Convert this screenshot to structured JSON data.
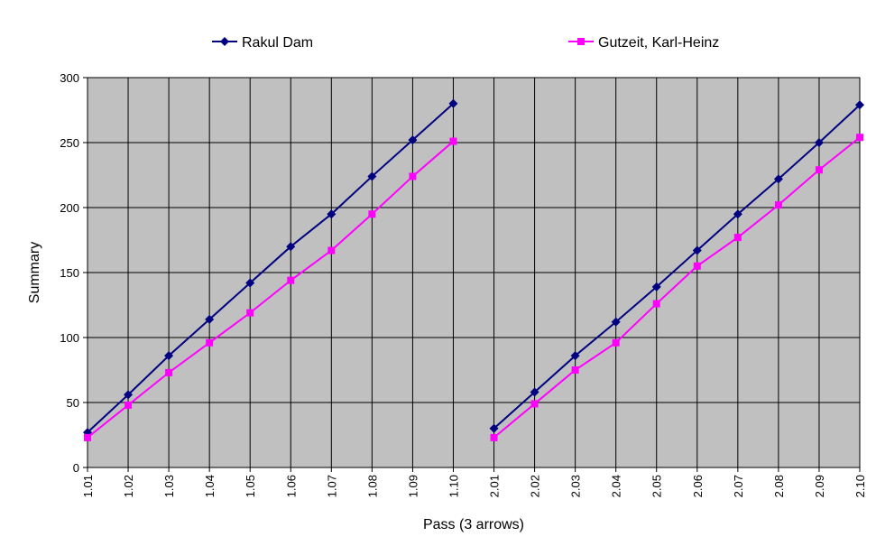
{
  "chart_data": {
    "type": "line",
    "x_label": "Pass (3 arrows)",
    "y_label": "Summary",
    "categories": [
      [
        "1.01",
        "1.02",
        "1.03",
        "1.04",
        "1.05",
        "1.06",
        "1.07",
        "1.08",
        "1.09",
        "1.10"
      ],
      [
        "2.01",
        "2.02",
        "2.03",
        "2.04",
        "2.05",
        "2.06",
        "2.07",
        "2.08",
        "2.09",
        "2.10"
      ]
    ],
    "series": [
      {
        "name": "Rakul Dam",
        "color": "#000080",
        "marker": "diamond",
        "values": [
          [
            27,
            56,
            86,
            114,
            142,
            170,
            195,
            224,
            252,
            280
          ],
          [
            30,
            58,
            86,
            112,
            139,
            167,
            195,
            222,
            250,
            279
          ]
        ]
      },
      {
        "name": "Gutzeit, Karl-Heinz",
        "color": "#ff00ff",
        "marker": "square",
        "values": [
          [
            23,
            48,
            73,
            96,
            119,
            144,
            167,
            195,
            224,
            251
          ],
          [
            23,
            49,
            75,
            96,
            126,
            155,
            177,
            202,
            229,
            254
          ]
        ]
      }
    ],
    "ylim": [
      0,
      300
    ],
    "yticks": [
      0,
      50,
      100,
      150,
      200,
      250,
      300
    ],
    "grid": true,
    "legend": "top",
    "background": "#c0c0c0"
  }
}
